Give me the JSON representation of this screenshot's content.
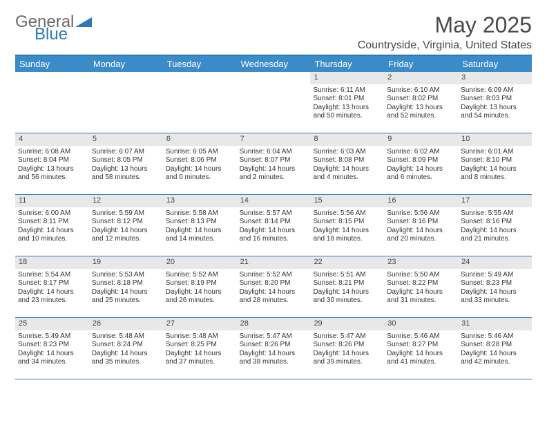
{
  "logo": {
    "text1": "General",
    "text2": "Blue"
  },
  "title": "May 2025",
  "location": "Countryside, Virginia, United States",
  "colors": {
    "header_bg": "#3b8bc9",
    "border": "#2a7ab9",
    "daynum_bg": "#e8e8e8",
    "text": "#333333",
    "title": "#4a4a4a"
  },
  "day_headers": [
    "Sunday",
    "Monday",
    "Tuesday",
    "Wednesday",
    "Thursday",
    "Friday",
    "Saturday"
  ],
  "weeks": [
    [
      {
        "empty": true
      },
      {
        "empty": true
      },
      {
        "empty": true
      },
      {
        "empty": true
      },
      {
        "num": "1",
        "sunrise": "Sunrise: 6:11 AM",
        "sunset": "Sunset: 8:01 PM",
        "day1": "Daylight: 13 hours",
        "day2": "and 50 minutes."
      },
      {
        "num": "2",
        "sunrise": "Sunrise: 6:10 AM",
        "sunset": "Sunset: 8:02 PM",
        "day1": "Daylight: 13 hours",
        "day2": "and 52 minutes."
      },
      {
        "num": "3",
        "sunrise": "Sunrise: 6:09 AM",
        "sunset": "Sunset: 8:03 PM",
        "day1": "Daylight: 13 hours",
        "day2": "and 54 minutes."
      }
    ],
    [
      {
        "num": "4",
        "sunrise": "Sunrise: 6:08 AM",
        "sunset": "Sunset: 8:04 PM",
        "day1": "Daylight: 13 hours",
        "day2": "and 56 minutes."
      },
      {
        "num": "5",
        "sunrise": "Sunrise: 6:07 AM",
        "sunset": "Sunset: 8:05 PM",
        "day1": "Daylight: 13 hours",
        "day2": "and 58 minutes."
      },
      {
        "num": "6",
        "sunrise": "Sunrise: 6:05 AM",
        "sunset": "Sunset: 8:06 PM",
        "day1": "Daylight: 14 hours",
        "day2": "and 0 minutes."
      },
      {
        "num": "7",
        "sunrise": "Sunrise: 6:04 AM",
        "sunset": "Sunset: 8:07 PM",
        "day1": "Daylight: 14 hours",
        "day2": "and 2 minutes."
      },
      {
        "num": "8",
        "sunrise": "Sunrise: 6:03 AM",
        "sunset": "Sunset: 8:08 PM",
        "day1": "Daylight: 14 hours",
        "day2": "and 4 minutes."
      },
      {
        "num": "9",
        "sunrise": "Sunrise: 6:02 AM",
        "sunset": "Sunset: 8:09 PM",
        "day1": "Daylight: 14 hours",
        "day2": "and 6 minutes."
      },
      {
        "num": "10",
        "sunrise": "Sunrise: 6:01 AM",
        "sunset": "Sunset: 8:10 PM",
        "day1": "Daylight: 14 hours",
        "day2": "and 8 minutes."
      }
    ],
    [
      {
        "num": "11",
        "sunrise": "Sunrise: 6:00 AM",
        "sunset": "Sunset: 8:11 PM",
        "day1": "Daylight: 14 hours",
        "day2": "and 10 minutes."
      },
      {
        "num": "12",
        "sunrise": "Sunrise: 5:59 AM",
        "sunset": "Sunset: 8:12 PM",
        "day1": "Daylight: 14 hours",
        "day2": "and 12 minutes."
      },
      {
        "num": "13",
        "sunrise": "Sunrise: 5:58 AM",
        "sunset": "Sunset: 8:13 PM",
        "day1": "Daylight: 14 hours",
        "day2": "and 14 minutes."
      },
      {
        "num": "14",
        "sunrise": "Sunrise: 5:57 AM",
        "sunset": "Sunset: 8:14 PM",
        "day1": "Daylight: 14 hours",
        "day2": "and 16 minutes."
      },
      {
        "num": "15",
        "sunrise": "Sunrise: 5:56 AM",
        "sunset": "Sunset: 8:15 PM",
        "day1": "Daylight: 14 hours",
        "day2": "and 18 minutes."
      },
      {
        "num": "16",
        "sunrise": "Sunrise: 5:56 AM",
        "sunset": "Sunset: 8:16 PM",
        "day1": "Daylight: 14 hours",
        "day2": "and 20 minutes."
      },
      {
        "num": "17",
        "sunrise": "Sunrise: 5:55 AM",
        "sunset": "Sunset: 8:16 PM",
        "day1": "Daylight: 14 hours",
        "day2": "and 21 minutes."
      }
    ],
    [
      {
        "num": "18",
        "sunrise": "Sunrise: 5:54 AM",
        "sunset": "Sunset: 8:17 PM",
        "day1": "Daylight: 14 hours",
        "day2": "and 23 minutes."
      },
      {
        "num": "19",
        "sunrise": "Sunrise: 5:53 AM",
        "sunset": "Sunset: 8:18 PM",
        "day1": "Daylight: 14 hours",
        "day2": "and 25 minutes."
      },
      {
        "num": "20",
        "sunrise": "Sunrise: 5:52 AM",
        "sunset": "Sunset: 8:19 PM",
        "day1": "Daylight: 14 hours",
        "day2": "and 26 minutes."
      },
      {
        "num": "21",
        "sunrise": "Sunrise: 5:52 AM",
        "sunset": "Sunset: 8:20 PM",
        "day1": "Daylight: 14 hours",
        "day2": "and 28 minutes."
      },
      {
        "num": "22",
        "sunrise": "Sunrise: 5:51 AM",
        "sunset": "Sunset: 8:21 PM",
        "day1": "Daylight: 14 hours",
        "day2": "and 30 minutes."
      },
      {
        "num": "23",
        "sunrise": "Sunrise: 5:50 AM",
        "sunset": "Sunset: 8:22 PM",
        "day1": "Daylight: 14 hours",
        "day2": "and 31 minutes."
      },
      {
        "num": "24",
        "sunrise": "Sunrise: 5:49 AM",
        "sunset": "Sunset: 8:23 PM",
        "day1": "Daylight: 14 hours",
        "day2": "and 33 minutes."
      }
    ],
    [
      {
        "num": "25",
        "sunrise": "Sunrise: 5:49 AM",
        "sunset": "Sunset: 8:23 PM",
        "day1": "Daylight: 14 hours",
        "day2": "and 34 minutes."
      },
      {
        "num": "26",
        "sunrise": "Sunrise: 5:48 AM",
        "sunset": "Sunset: 8:24 PM",
        "day1": "Daylight: 14 hours",
        "day2": "and 35 minutes."
      },
      {
        "num": "27",
        "sunrise": "Sunrise: 5:48 AM",
        "sunset": "Sunset: 8:25 PM",
        "day1": "Daylight: 14 hours",
        "day2": "and 37 minutes."
      },
      {
        "num": "28",
        "sunrise": "Sunrise: 5:47 AM",
        "sunset": "Sunset: 8:26 PM",
        "day1": "Daylight: 14 hours",
        "day2": "and 38 minutes."
      },
      {
        "num": "29",
        "sunrise": "Sunrise: 5:47 AM",
        "sunset": "Sunset: 8:26 PM",
        "day1": "Daylight: 14 hours",
        "day2": "and 39 minutes."
      },
      {
        "num": "30",
        "sunrise": "Sunrise: 5:46 AM",
        "sunset": "Sunset: 8:27 PM",
        "day1": "Daylight: 14 hours",
        "day2": "and 41 minutes."
      },
      {
        "num": "31",
        "sunrise": "Sunrise: 5:46 AM",
        "sunset": "Sunset: 8:28 PM",
        "day1": "Daylight: 14 hours",
        "day2": "and 42 minutes."
      }
    ]
  ]
}
